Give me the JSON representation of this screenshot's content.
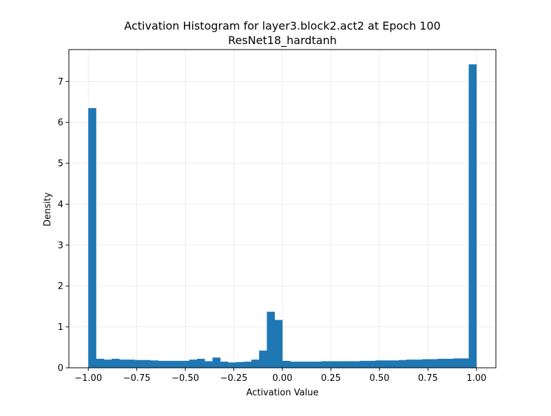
{
  "chart_data": {
    "type": "bar",
    "title": "Activation Histogram for layer3.block2.act2 at Epoch 100",
    "subtitle": "ResNet18_hardtanh",
    "xlabel": "Activation Value",
    "ylabel": "Density",
    "xlim": [
      -1.1,
      1.1
    ],
    "ylim": [
      0,
      7.78
    ],
    "grid": true,
    "bar_color": "#1f77b4",
    "bin_range": [
      -1.0,
      1.0
    ],
    "x_ticks": [
      {
        "value": -1.0,
        "label": "−1.00"
      },
      {
        "value": -0.75,
        "label": "−0.75"
      },
      {
        "value": -0.5,
        "label": "−0.50"
      },
      {
        "value": -0.25,
        "label": "−0.25"
      },
      {
        "value": 0.0,
        "label": "0.00"
      },
      {
        "value": 0.25,
        "label": "0.25"
      },
      {
        "value": 0.5,
        "label": "0.50"
      },
      {
        "value": 0.75,
        "label": "0.75"
      },
      {
        "value": 1.0,
        "label": "1.00"
      }
    ],
    "y_ticks": [
      {
        "value": 0,
        "label": "0"
      },
      {
        "value": 1,
        "label": "1"
      },
      {
        "value": 2,
        "label": "2"
      },
      {
        "value": 3,
        "label": "3"
      },
      {
        "value": 4,
        "label": "4"
      },
      {
        "value": 5,
        "label": "5"
      },
      {
        "value": 6,
        "label": "6"
      },
      {
        "value": 7,
        "label": "7"
      }
    ],
    "values": [
      6.35,
      0.22,
      0.2,
      0.22,
      0.2,
      0.2,
      0.19,
      0.19,
      0.18,
      0.17,
      0.17,
      0.17,
      0.17,
      0.2,
      0.22,
      0.16,
      0.25,
      0.15,
      0.13,
      0.14,
      0.15,
      0.2,
      0.42,
      1.37,
      1.17,
      0.17,
      0.15,
      0.15,
      0.15,
      0.15,
      0.16,
      0.16,
      0.16,
      0.16,
      0.16,
      0.17,
      0.17,
      0.18,
      0.18,
      0.18,
      0.19,
      0.2,
      0.2,
      0.21,
      0.21,
      0.22,
      0.22,
      0.23,
      0.23,
      7.42
    ]
  }
}
